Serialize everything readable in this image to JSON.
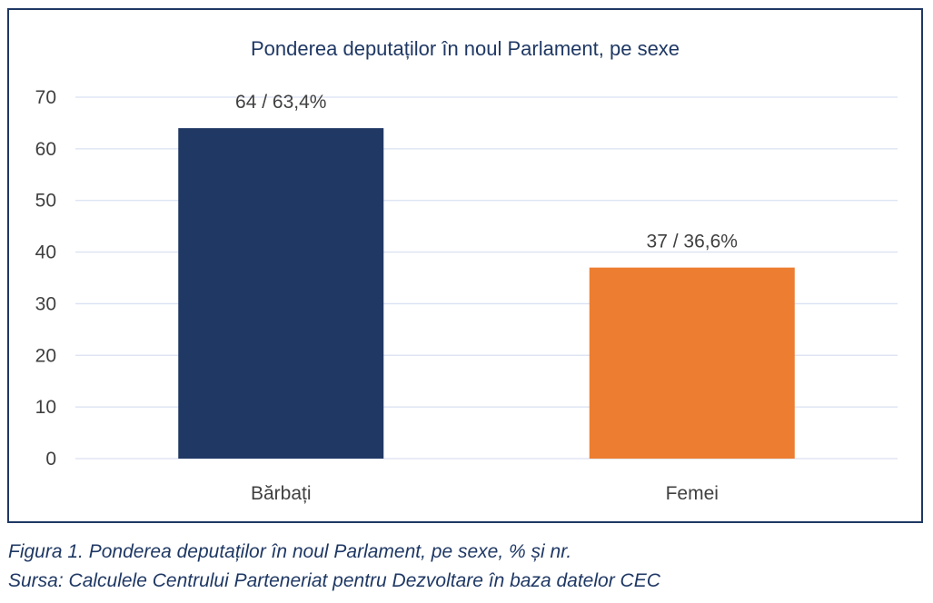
{
  "chart_data": {
    "type": "bar",
    "title": "Ponderea deputaților în noul Parlament, pe sexe",
    "categories": [
      "Bărbați",
      "Femei"
    ],
    "values": [
      64,
      37
    ],
    "data_labels": [
      "64 / 63,4%",
      "37 / 36,6%"
    ],
    "bar_colors": [
      "#203864",
      "#ed7d31"
    ],
    "xlabel": "",
    "ylabel": "",
    "ylim": [
      0,
      70
    ],
    "yticks": [
      0,
      10,
      20,
      30,
      40,
      50,
      60,
      70
    ],
    "grid": true,
    "legend": "none"
  },
  "colors": {
    "frame_border": "#1f3864",
    "title_text": "#1f3864",
    "gridline": "#d9e1f2",
    "axis_text": "#404040",
    "caption_text": "#1f3864"
  },
  "caption": {
    "line1": "Figura 1. Ponderea deputaților în noul Parlament, pe sexe, % și nr.",
    "line2": "Sursa: Calculele Centrului Parteneriat pentru Dezvoltare în baza datelor CEC"
  }
}
